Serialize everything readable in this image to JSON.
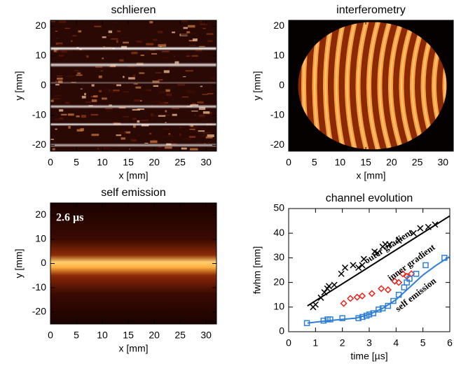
{
  "chart_data": [
    {
      "type": "image",
      "title": "schlieren",
      "xlabel": "x [mm]",
      "ylabel": "y [mm]",
      "xlim": [
        0,
        32
      ],
      "ylim": [
        -22,
        22
      ],
      "xticks": [
        0,
        5,
        10,
        15,
        20,
        25,
        30
      ],
      "yticks": [
        -20,
        -10,
        0,
        10,
        20
      ]
    },
    {
      "type": "image",
      "title": "interferometry",
      "xlabel": "x [mm]",
      "ylabel": "y [mm]",
      "xlim": [
        0,
        32
      ],
      "ylim": [
        -22,
        22
      ],
      "xticks": [
        0,
        5,
        10,
        15,
        20,
        25,
        30
      ],
      "yticks": [
        -20,
        -10,
        0,
        10,
        20
      ]
    },
    {
      "type": "image",
      "title": "self emission",
      "xlabel": "x [mm]",
      "ylabel": "y [mm]",
      "annotation": "2.6 µs",
      "xlim": [
        0,
        32
      ],
      "ylim": [
        -25,
        25
      ],
      "xticks": [
        0,
        5,
        10,
        15,
        20,
        25,
        30
      ],
      "yticks": [
        -20,
        -10,
        0,
        10,
        20
      ]
    },
    {
      "type": "scatter",
      "title": "channel evolution",
      "xlabel": "time [µs]",
      "ylabel": "fwhm [mm]",
      "xlim": [
        0,
        6
      ],
      "ylim": [
        0,
        50
      ],
      "xticks": [
        0,
        1,
        2,
        3,
        4,
        5,
        6
      ],
      "yticks": [
        0,
        10,
        20,
        30,
        40,
        50
      ],
      "series": [
        {
          "name": "outer gradient",
          "color": "#000000",
          "marker": "x",
          "x": [
            0.91,
            1.0,
            1.2,
            1.33,
            1.44,
            1.5,
            1.7,
            1.96,
            2.1,
            2.4,
            2.6,
            2.74,
            2.8,
            3.2,
            3.3,
            3.5,
            3.6,
            3.75,
            4.1,
            4.65,
            4.9,
            5.2,
            5.45
          ],
          "values": [
            10,
            11,
            13.8,
            16,
            17.5,
            18.5,
            19,
            23.5,
            26,
            27,
            26,
            27,
            29.5,
            32.5,
            32,
            34.5,
            35.5,
            35.5,
            37,
            40,
            42,
            42.5,
            43.5
          ]
        },
        {
          "color": "#000000",
          "marker": "line",
          "x": [
            0.7,
            6
          ],
          "values": [
            10.5,
            47
          ]
        },
        {
          "name": "inner gradient",
          "color": "#e8241c",
          "marker": "diamond",
          "x": [
            2.05,
            2.3,
            2.55,
            2.74,
            3.1,
            3.45,
            3.7,
            3.95,
            4.1,
            4.25,
            4.4,
            4.57
          ],
          "values": [
            11.5,
            13.5,
            14,
            14.5,
            15.5,
            17.5,
            17,
            20.5,
            20,
            23.5,
            22.5,
            23.5
          ]
        },
        {
          "name": "self emission",
          "color": "#2f7fd8",
          "marker": "square",
          "x": [
            0.68,
            1.3,
            1.45,
            1.55,
            2.0,
            2.6,
            2.75,
            2.9,
            3.0,
            3.15,
            3.35,
            3.5,
            3.7,
            3.9,
            4.1,
            4.3,
            4.4,
            4.5,
            4.75,
            5.1,
            5.8
          ],
          "values": [
            3.5,
            4.5,
            5,
            5,
            5.5,
            5.5,
            6,
            6.5,
            7,
            7.5,
            9,
            9.5,
            10.5,
            12.5,
            15,
            18,
            20,
            21.5,
            23.5,
            27,
            30
          ]
        },
        {
          "color": "#2f7fd8",
          "marker": "line",
          "x": [
            0.7,
            1.5,
            2,
            2.5,
            3,
            3.5,
            4,
            4.5,
            5,
            5.5,
            6
          ],
          "values": [
            3.5,
            4.5,
            5,
            5.5,
            7,
            9.5,
            13,
            18,
            23,
            27,
            30.5
          ]
        }
      ]
    }
  ]
}
